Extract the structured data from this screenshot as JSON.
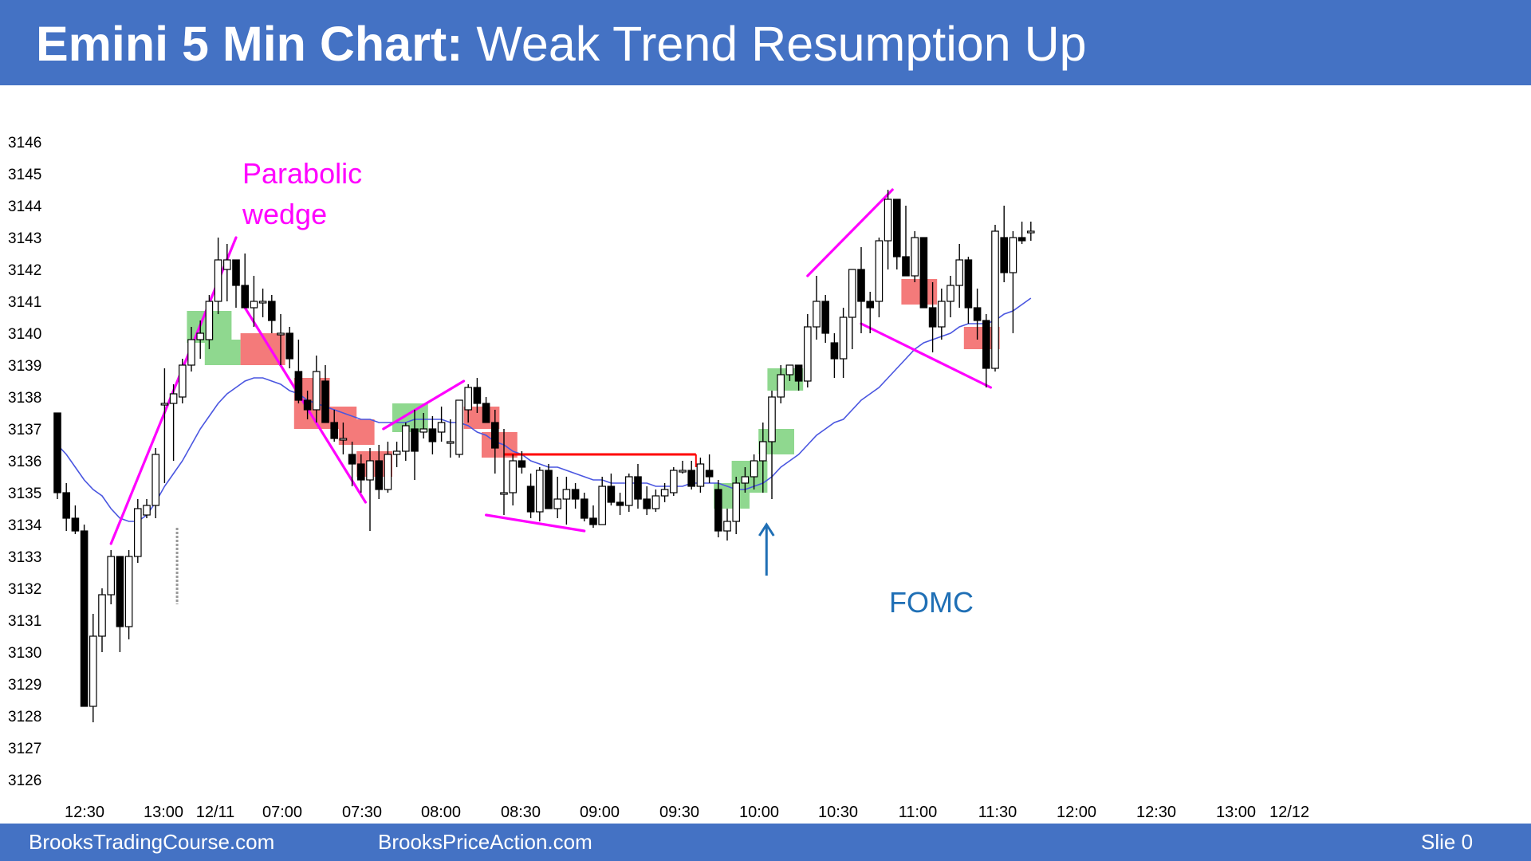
{
  "header": {
    "title_bold": "Emini 5 Min Chart:",
    "title_rest": " Weak Trend Resumption Up"
  },
  "footer": {
    "left": "BrooksTradingCourse.com",
    "center": "BrooksPriceAction.com",
    "right": "Slie  0"
  },
  "colors": {
    "header_bg": "#4472c4",
    "bull_highlight": "#8fd88f",
    "bear_highlight": "#f47a7a",
    "ema": "#4a56e0",
    "trendline": "#ff00ff",
    "resistance": "#ff0000",
    "annotation_blue": "#1f6fb5"
  },
  "chart_data": {
    "type": "candlestick",
    "title": "Emini 5 Min Chart: Weak Trend Resumption Up",
    "ylim": [
      3126,
      3146
    ],
    "y_ticks": [
      3146,
      3145,
      3144,
      3143,
      3142,
      3141,
      3140,
      3139,
      3138,
      3137,
      3136,
      3135,
      3134,
      3133,
      3132,
      3131,
      3130,
      3129,
      3128,
      3127,
      3126
    ],
    "x_ticks": [
      "12:30",
      "13:00",
      "12/11",
      "07:00",
      "07:30",
      "08:00",
      "08:30",
      "09:00",
      "09:30",
      "10:00",
      "10:30",
      "11:00",
      "11:30",
      "12:00",
      "12:30",
      "13:00",
      "12/12"
    ],
    "grid": false,
    "legend": "none",
    "candles": [
      [
        3137.5,
        3137.5,
        3134.8,
        3135.0
      ],
      [
        3135.0,
        3135.3,
        3133.8,
        3134.2
      ],
      [
        3134.2,
        3134.6,
        3133.7,
        3133.8
      ],
      [
        3133.8,
        3134.0,
        3128.3,
        3128.3
      ],
      [
        3128.3,
        3131.2,
        3127.8,
        3130.5
      ],
      [
        3130.5,
        3132.0,
        3130.0,
        3131.8
      ],
      [
        3131.8,
        3133.2,
        3131.5,
        3133.0
      ],
      [
        3133.0,
        3133.0,
        3130.0,
        3130.8
      ],
      [
        3130.8,
        3133.2,
        3130.4,
        3133.0
      ],
      [
        3133.0,
        3134.8,
        3132.8,
        3134.5
      ],
      [
        3134.3,
        3134.8,
        3134.2,
        3134.6
      ],
      [
        3134.6,
        3136.4,
        3134.2,
        3136.2
      ],
      [
        3137.8,
        3138.9,
        3135.3,
        3137.8
      ],
      [
        3137.8,
        3138.4,
        3136.0,
        3138.1
      ],
      [
        3138.0,
        3139.2,
        3137.8,
        3139.0
      ],
      [
        3139.0,
        3140.2,
        3138.8,
        3139.8
      ],
      [
        3139.8,
        3140.4,
        3139.2,
        3140.0
      ],
      [
        3139.8,
        3141.2,
        3139.5,
        3141.0
      ],
      [
        3141.0,
        3143.0,
        3140.6,
        3142.3
      ],
      [
        3142.0,
        3142.8,
        3141.0,
        3142.3
      ],
      [
        3142.3,
        3142.3,
        3140.8,
        3141.5
      ],
      [
        3141.5,
        3142.5,
        3140.8,
        3140.8
      ],
      [
        3140.8,
        3141.8,
        3140.2,
        3141.0
      ],
      [
        3141.0,
        3141.4,
        3140.5,
        3141.0
      ],
      [
        3141.0,
        3141.2,
        3140.0,
        3140.4
      ],
      [
        3140.0,
        3140.6,
        3139.0,
        3140.0
      ],
      [
        3140.0,
        3140.2,
        3138.9,
        3139.2
      ],
      [
        3138.8,
        3139.8,
        3137.8,
        3137.9
      ],
      [
        3137.9,
        3138.2,
        3137.3,
        3137.6
      ],
      [
        3137.6,
        3139.3,
        3137.2,
        3138.8
      ],
      [
        3138.5,
        3139.0,
        3137.2,
        3137.2
      ],
      [
        3137.2,
        3137.6,
        3136.6,
        3136.7
      ],
      [
        3136.7,
        3137.2,
        3136.2,
        3136.7
      ],
      [
        3136.2,
        3136.6,
        3135.2,
        3135.9
      ],
      [
        3135.9,
        3136.2,
        3135.0,
        3135.4
      ],
      [
        3135.4,
        3136.4,
        3133.8,
        3136.0
      ],
      [
        3136.0,
        3136.5,
        3134.8,
        3135.1
      ],
      [
        3135.1,
        3136.6,
        3135.0,
        3136.2
      ],
      [
        3136.2,
        3136.6,
        3135.8,
        3136.3
      ],
      [
        3136.3,
        3137.2,
        3136.0,
        3137.1
      ],
      [
        3137.0,
        3137.6,
        3135.4,
        3136.3
      ],
      [
        3136.9,
        3137.5,
        3136.7,
        3137.0
      ],
      [
        3137.0,
        3137.4,
        3136.2,
        3136.6
      ],
      [
        3136.9,
        3137.7,
        3136.6,
        3137.2
      ],
      [
        3136.6,
        3137.3,
        3136.1,
        3136.6
      ],
      [
        3136.2,
        3137.9,
        3136.1,
        3137.9
      ],
      [
        3137.6,
        3138.4,
        3137.2,
        3138.3
      ],
      [
        3138.3,
        3138.6,
        3137.5,
        3137.8
      ],
      [
        3137.8,
        3138.0,
        3137.2,
        3137.2
      ],
      [
        3137.2,
        3137.6,
        3135.6,
        3136.4
      ],
      [
        3135.0,
        3137.0,
        3134.3,
        3135.0
      ],
      [
        3135.0,
        3136.2,
        3134.6,
        3136.0
      ],
      [
        3136.0,
        3136.3,
        3135.6,
        3135.8
      ],
      [
        3135.2,
        3135.6,
        3134.2,
        3134.4
      ],
      [
        3134.4,
        3135.8,
        3134.1,
        3135.7
      ],
      [
        3135.7,
        3135.9,
        3134.5,
        3134.5
      ],
      [
        3134.5,
        3135.5,
        3134.2,
        3134.8
      ],
      [
        3134.8,
        3135.5,
        3134.0,
        3135.1
      ],
      [
        3135.1,
        3135.3,
        3134.5,
        3134.8
      ],
      [
        3134.8,
        3135.0,
        3134.1,
        3134.2
      ],
      [
        3134.2,
        3134.6,
        3133.9,
        3134.0
      ],
      [
        3134.0,
        3135.5,
        3134.0,
        3135.2
      ],
      [
        3135.2,
        3135.6,
        3134.6,
        3134.7
      ],
      [
        3134.7,
        3135.0,
        3134.3,
        3134.6
      ],
      [
        3134.6,
        3135.6,
        3134.4,
        3135.5
      ],
      [
        3135.5,
        3135.9,
        3134.5,
        3134.8
      ],
      [
        3134.8,
        3135.2,
        3134.3,
        3134.5
      ],
      [
        3134.5,
        3135.1,
        3134.4,
        3134.9
      ],
      [
        3134.9,
        3135.3,
        3134.7,
        3135.1
      ],
      [
        3135.0,
        3135.8,
        3134.9,
        3135.7
      ],
      [
        3135.7,
        3136.0,
        3135.6,
        3135.7
      ],
      [
        3135.7,
        3136.0,
        3135.1,
        3135.2
      ],
      [
        3135.2,
        3136.1,
        3135.0,
        3135.9
      ],
      [
        3135.7,
        3136.2,
        3135.3,
        3135.5
      ],
      [
        3135.1,
        3135.4,
        3133.6,
        3133.8
      ],
      [
        3133.8,
        3134.5,
        3133.5,
        3134.1
      ],
      [
        3134.1,
        3135.5,
        3133.7,
        3135.3
      ],
      [
        3135.3,
        3135.8,
        3135.0,
        3135.5
      ],
      [
        3135.5,
        3136.2,
        3135.1,
        3136.0
      ],
      [
        3136.0,
        3137.2,
        3135.0,
        3136.6
      ],
      [
        3136.6,
        3138.2,
        3134.8,
        3138.0
      ],
      [
        3138.0,
        3139.0,
        3137.8,
        3138.7
      ],
      [
        3138.7,
        3139.0,
        3138.5,
        3139.0
      ],
      [
        3139.0,
        3139.0,
        3138.2,
        3138.5
      ],
      [
        3138.5,
        3140.6,
        3138.3,
        3140.2
      ],
      [
        3140.2,
        3141.8,
        3139.8,
        3141.0
      ],
      [
        3141.0,
        3141.2,
        3139.7,
        3140.0
      ],
      [
        3139.7,
        3140.0,
        3138.6,
        3139.2
      ],
      [
        3139.2,
        3140.8,
        3138.6,
        3140.5
      ],
      [
        3140.5,
        3142.0,
        3139.5,
        3142.0
      ],
      [
        3142.0,
        3142.7,
        3140.0,
        3141.0
      ],
      [
        3141.0,
        3141.3,
        3140.0,
        3140.8
      ],
      [
        3141.0,
        3143.0,
        3140.5,
        3142.9
      ],
      [
        3142.9,
        3144.5,
        3142.0,
        3144.2
      ],
      [
        3144.2,
        3144.2,
        3142.0,
        3142.4
      ],
      [
        3142.4,
        3144.0,
        3142.0,
        3141.8
      ],
      [
        3141.8,
        3143.2,
        3141.6,
        3143.0
      ],
      [
        3143.0,
        3143.0,
        3140.8,
        3140.8
      ],
      [
        3140.8,
        3141.6,
        3139.4,
        3140.2
      ],
      [
        3140.2,
        3141.4,
        3139.8,
        3141.0
      ],
      [
        3141.0,
        3141.8,
        3140.5,
        3141.5
      ],
      [
        3141.5,
        3142.8,
        3140.8,
        3142.3
      ],
      [
        3142.3,
        3142.4,
        3140.3,
        3140.8
      ],
      [
        3140.8,
        3141.4,
        3139.8,
        3140.4
      ],
      [
        3140.4,
        3140.6,
        3138.3,
        3138.9
      ],
      [
        3138.9,
        3143.4,
        3138.8,
        3143.2
      ],
      [
        3143.0,
        3144.0,
        3141.6,
        3141.9
      ],
      [
        3141.9,
        3143.2,
        3140.0,
        3143.0
      ],
      [
        3143.0,
        3143.5,
        3142.8,
        3142.9
      ],
      [
        3143.2,
        3143.5,
        3142.9,
        3143.2
      ]
    ],
    "ema": [
      3136.5,
      3136.2,
      3135.8,
      3135.4,
      3135.1,
      3134.9,
      3134.5,
      3134.2,
      3134.1,
      3134.1,
      3134.3,
      3134.7,
      3135.2,
      3135.6,
      3136.0,
      3136.5,
      3137.0,
      3137.4,
      3137.8,
      3138.1,
      3138.3,
      3138.5,
      3138.6,
      3138.6,
      3138.5,
      3138.4,
      3138.2,
      3138.1,
      3137.9,
      3137.8,
      3137.7,
      3137.6,
      3137.5,
      3137.4,
      3137.3,
      3137.3,
      3137.2,
      3137.2,
      3137.2,
      3137.2,
      3137.3,
      3137.3,
      3137.3,
      3137.3,
      3137.2,
      3137.2,
      3137.1,
      3136.9,
      3136.8,
      3136.6,
      3136.5,
      3136.3,
      3136.2,
      3136.0,
      3135.9,
      3135.8,
      3135.8,
      3135.7,
      3135.6,
      3135.5,
      3135.4,
      3135.4,
      3135.3,
      3135.3,
      3135.3,
      3135.3,
      3135.3,
      3135.2,
      3135.2,
      3135.2,
      3135.2,
      3135.3,
      3135.3,
      3135.3,
      3135.3,
      3135.2,
      3135.1,
      3135.1,
      3135.2,
      3135.3,
      3135.5,
      3135.8,
      3136.0,
      3136.2,
      3136.5,
      3136.8,
      3137.0,
      3137.2,
      3137.3,
      3137.6,
      3137.9,
      3138.1,
      3138.3,
      3138.6,
      3138.9,
      3139.2,
      3139.5,
      3139.7,
      3139.8,
      3139.9,
      3140.0,
      3140.2,
      3140.3,
      3140.3,
      3140.3,
      3140.4,
      3140.6,
      3140.7,
      3140.9,
      3141.1
    ],
    "annotations": [
      "Parabolic",
      "wedge",
      "FOMC"
    ]
  }
}
